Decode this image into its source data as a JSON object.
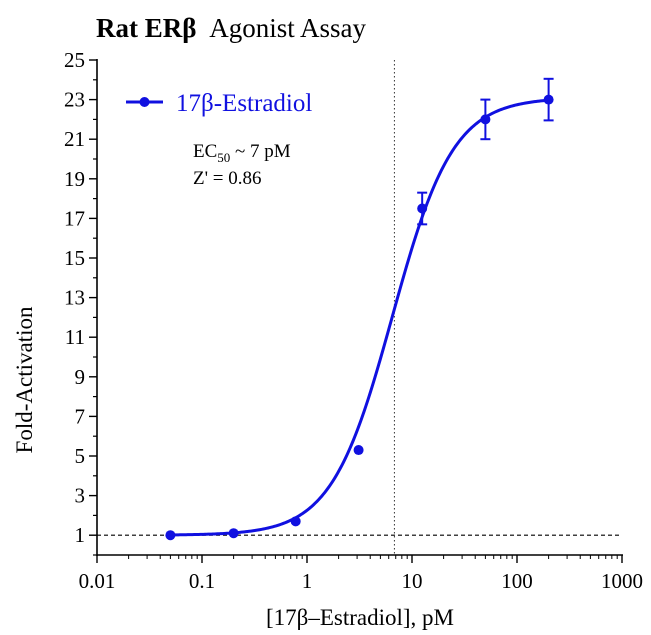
{
  "chart_data": {
    "type": "scatter",
    "title": {
      "bold": "Rat ERβ",
      "regular": "Agonist Assay"
    },
    "xlabel": "[17β–Estradiol], pM",
    "ylabel": "Fold-Activation",
    "x_scale": "log",
    "xlim": [
      0.01,
      1000
    ],
    "ylim": [
      0,
      25
    ],
    "x_ticks": [
      {
        "value": 0.01,
        "label": "0.01"
      },
      {
        "value": 0.1,
        "label": "0.1"
      },
      {
        "value": 1,
        "label": "1"
      },
      {
        "value": 10,
        "label": "10"
      },
      {
        "value": 100,
        "label": "100"
      },
      {
        "value": 1000,
        "label": "1000"
      }
    ],
    "y_ticks": [
      {
        "value": 1,
        "label": "1"
      },
      {
        "value": 3,
        "label": "3"
      },
      {
        "value": 5,
        "label": "5"
      },
      {
        "value": 7,
        "label": "7"
      },
      {
        "value": 9,
        "label": "9"
      },
      {
        "value": 11,
        "label": "11"
      },
      {
        "value": 13,
        "label": "13"
      },
      {
        "value": 15,
        "label": "15"
      },
      {
        "value": 17,
        "label": "17"
      },
      {
        "value": 19,
        "label": "19"
      },
      {
        "value": 21,
        "label": "21"
      },
      {
        "value": 23,
        "label": "23"
      },
      {
        "value": 25,
        "label": "25"
      }
    ],
    "series": [
      {
        "name": "17β-Estradiol",
        "color": "#1010e0",
        "points": [
          {
            "x": 0.05,
            "y": 1.0,
            "err": 0
          },
          {
            "x": 0.2,
            "y": 1.1,
            "err": 0
          },
          {
            "x": 0.78,
            "y": 1.7,
            "err": 0
          },
          {
            "x": 3.1,
            "y": 5.3,
            "err": 0
          },
          {
            "x": 12.5,
            "y": 17.5,
            "err": 0.8
          },
          {
            "x": 50,
            "y": 22.0,
            "err": 1.0
          },
          {
            "x": 200,
            "y": 23.0,
            "err": 1.05
          }
        ],
        "fit": {
          "bottom": 1.0,
          "top": 23.1,
          "ec50": 6.5,
          "hill": 1.5
        }
      }
    ],
    "reference_lines": [
      {
        "orientation": "horizontal",
        "value": 1,
        "style": "dashed"
      },
      {
        "orientation": "vertical",
        "value": 6.8,
        "style": "dotted"
      }
    ],
    "legend": {
      "placement": "top-left",
      "entry": "17β-Estradiol"
    },
    "annotations": {
      "ec50_prefix": "EC",
      "ec50_sub": "50",
      "ec50_suffix": " ~ 7 pM",
      "zprime": "Z' = 0.86"
    },
    "grid": false
  }
}
